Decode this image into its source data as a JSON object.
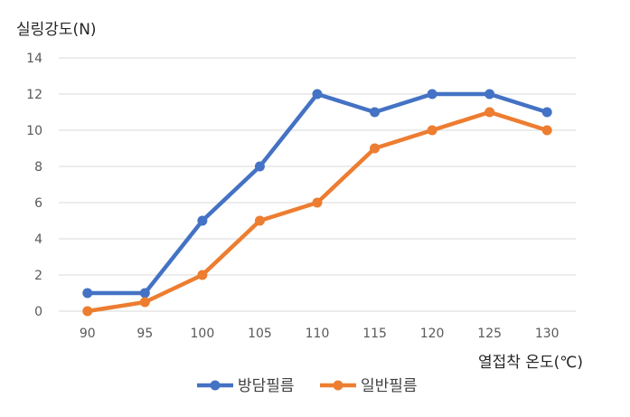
{
  "chart_data": {
    "type": "line",
    "title": "",
    "ylabel": "실링강도(N)",
    "xlabel": "열접착 온도(℃)",
    "categories": [
      "90",
      "95",
      "100",
      "105",
      "110",
      "115",
      "120",
      "125",
      "130"
    ],
    "ylim": [
      0,
      14
    ],
    "yticks": [
      0,
      2,
      4,
      6,
      8,
      10,
      12,
      14
    ],
    "grid": true,
    "legend_position": "bottom",
    "series": [
      {
        "name": "방담필름",
        "color": "#4472C4",
        "values": [
          1,
          1,
          5,
          8,
          12,
          11,
          12,
          12,
          11
        ]
      },
      {
        "name": "일반필름",
        "color": "#ED7D31",
        "values": [
          0,
          0.5,
          2,
          5,
          6,
          9,
          10,
          11,
          10
        ]
      }
    ]
  }
}
